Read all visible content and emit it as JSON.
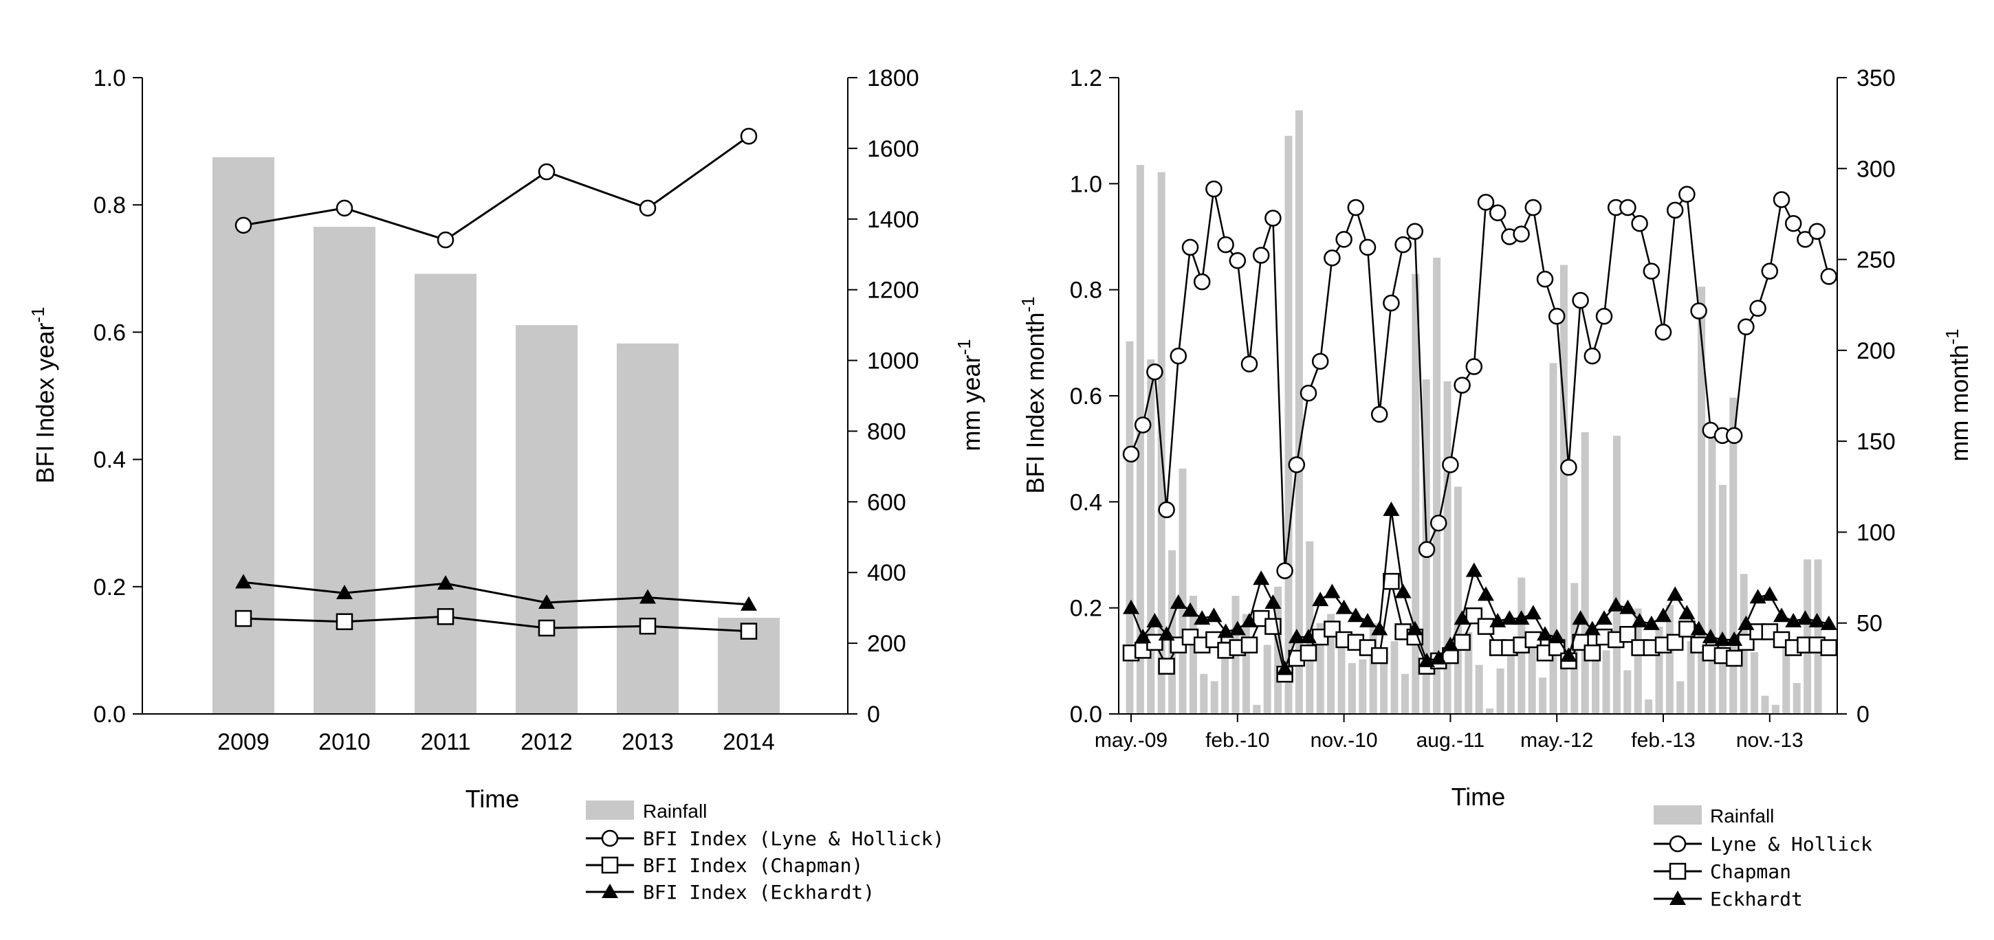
{
  "colors": {
    "rainfall": "#c8c8c8",
    "line": "#000000",
    "marker_fill_open": "#ffffff",
    "marker_fill_solid": "#000000"
  },
  "chart_data": [
    {
      "type": "bar+line",
      "title": "",
      "xlabel": "Time",
      "ylabel_prefix": "BFI Index year",
      "ylabel_sup": "-1",
      "y2label_prefix": "mm year",
      "y2label_sup": "-1",
      "categories": [
        "2009",
        "2010",
        "2011",
        "2012",
        "2013",
        "2014"
      ],
      "ylim": [
        0,
        1.0
      ],
      "yticks": [
        "0.0",
        "0.2",
        "0.4",
        "0.6",
        "0.8",
        "1.0"
      ],
      "y2lim": [
        0,
        1800
      ],
      "y2ticks": [
        "0",
        "200",
        "400",
        "600",
        "800",
        "1000",
        "1200",
        "1400",
        "1600",
        "1800"
      ],
      "bars": {
        "name": "Rainfall",
        "axis": "right",
        "values": [
          1575,
          1378,
          1245,
          1100,
          1048,
          272
        ]
      },
      "series": [
        {
          "name": "BFI Index (Lyne & Hollick)",
          "marker": "open-circle",
          "values": [
            0.768,
            0.795,
            0.745,
            0.852,
            0.795,
            0.908
          ]
        },
        {
          "name": "BFI Index (Chapman)",
          "marker": "open-square",
          "values": [
            0.15,
            0.145,
            0.153,
            0.135,
            0.138,
            0.13
          ]
        },
        {
          "name": "BFI Index (Eckhardt)",
          "marker": "filled-triangle",
          "values": [
            0.207,
            0.19,
            0.205,
            0.175,
            0.183,
            0.172
          ]
        }
      ],
      "legend": [
        "Rainfall",
        "BFI Index (Lyne & Hollick)",
        "BFI Index (Chapman)",
        "BFI Index (Eckhardt)"
      ],
      "legend_position": "bottom-right"
    },
    {
      "type": "bar+line",
      "title": "",
      "xlabel": "Time",
      "ylabel_prefix": "BFI Index month",
      "ylabel_sup": "-1",
      "y2label_prefix": "mm month",
      "y2label_sup": "-1",
      "xtick_labels": [
        "may.-09",
        "feb.-10",
        "nov.-10",
        "aug.-11",
        "may.-12",
        "feb.-13",
        "nov.-13"
      ],
      "xtick_index": [
        0,
        9,
        18,
        27,
        36,
        45,
        54
      ],
      "ylim": [
        0,
        1.2
      ],
      "yticks": [
        "0.0",
        "0.2",
        "0.4",
        "0.6",
        "0.8",
        "1.0",
        "1.2"
      ],
      "y2lim": [
        0,
        350
      ],
      "y2ticks": [
        "0",
        "50",
        "100",
        "150",
        "200",
        "250",
        "300",
        "350"
      ],
      "bars": {
        "name": "Rainfall",
        "axis": "right",
        "values": [
          205,
          302,
          195,
          298,
          90,
          135,
          65,
          22,
          18,
          40,
          65,
          55,
          5,
          38,
          70,
          318,
          332,
          95,
          50,
          55,
          45,
          28,
          30,
          50,
          35,
          40,
          22,
          242,
          184,
          251,
          183,
          125,
          45,
          27,
          3,
          25,
          36,
          75,
          45,
          20,
          193,
          247,
          72,
          155,
          35,
          35,
          153,
          24,
          58,
          8,
          48,
          60,
          18,
          40,
          235,
          155,
          126,
          174,
          77,
          34,
          10,
          5,
          43,
          17,
          85,
          85
        ]
      },
      "series": [
        {
          "name": "Lyne & Hollick",
          "marker": "open-circle",
          "values": [
            0.49,
            0.545,
            0.645,
            0.385,
            0.675,
            0.88,
            0.815,
            0.99,
            0.885,
            0.855,
            0.66,
            0.865,
            0.935,
            0.27,
            0.47,
            0.605,
            0.665,
            0.86,
            0.895,
            0.955,
            0.88,
            0.565,
            0.775,
            0.885,
            0.91,
            0.31,
            0.36,
            0.47,
            0.62,
            0.655,
            0.965,
            0.945,
            0.9,
            0.905,
            0.955,
            0.82,
            0.75,
            0.465,
            0.78,
            0.675,
            0.75,
            0.955,
            0.955,
            0.925,
            0.835,
            0.72,
            0.95,
            0.98,
            0.76,
            0.535,
            0.525,
            0.525,
            0.73,
            0.765,
            0.835,
            0.97,
            0.925,
            0.895,
            0.91,
            0.825
          ]
        },
        {
          "name": "Chapman",
          "marker": "open-square",
          "values": [
            0.115,
            0.12,
            0.135,
            0.09,
            0.13,
            0.145,
            0.13,
            0.14,
            0.12,
            0.125,
            0.13,
            0.18,
            0.165,
            0.075,
            0.105,
            0.115,
            0.145,
            0.16,
            0.14,
            0.135,
            0.125,
            0.11,
            0.25,
            0.155,
            0.145,
            0.09,
            0.1,
            0.11,
            0.135,
            0.185,
            0.165,
            0.125,
            0.125,
            0.13,
            0.14,
            0.115,
            0.125,
            0.1,
            0.135,
            0.115,
            0.145,
            0.14,
            0.15,
            0.125,
            0.125,
            0.13,
            0.135,
            0.16,
            0.13,
            0.115,
            0.11,
            0.105,
            0.135,
            0.155,
            0.155,
            0.14,
            0.125,
            0.13,
            0.13,
            0.125
          ]
        },
        {
          "name": "Eckhardt",
          "marker": "filled-triangle",
          "values": [
            0.2,
            0.145,
            0.175,
            0.15,
            0.21,
            0.195,
            0.18,
            0.185,
            0.155,
            0.16,
            0.175,
            0.255,
            0.21,
            0.085,
            0.145,
            0.145,
            0.215,
            0.23,
            0.2,
            0.185,
            0.175,
            0.16,
            0.385,
            0.23,
            0.16,
            0.1,
            0.105,
            0.13,
            0.18,
            0.27,
            0.225,
            0.175,
            0.18,
            0.18,
            0.19,
            0.15,
            0.145,
            0.11,
            0.18,
            0.16,
            0.18,
            0.205,
            0.2,
            0.175,
            0.17,
            0.185,
            0.225,
            0.19,
            0.16,
            0.145,
            0.14,
            0.14,
            0.17,
            0.22,
            0.225,
            0.185,
            0.175,
            0.18,
            0.175,
            0.17
          ]
        }
      ],
      "legend": [
        "Rainfall",
        "Lyne & Hollick",
        "Chapman",
        "Eckhardt"
      ],
      "legend_position": "bottom-right"
    }
  ]
}
